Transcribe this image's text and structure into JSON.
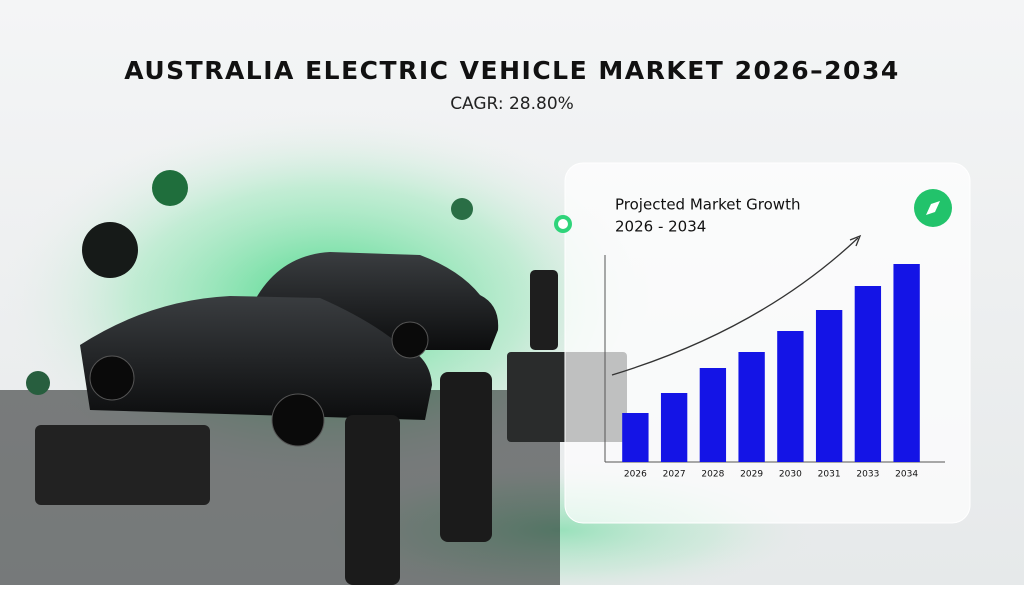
{
  "header": {
    "title": "AUSTRALIA ELECTRIC VEHICLE MARKET 2026–2034",
    "subtitle": "CAGR: 28.80%"
  },
  "chart_data": {
    "type": "bar",
    "title": "Projected Market Growth",
    "subtitle": "2026 - 2034",
    "categories": [
      "2026",
      "2027",
      "2028",
      "2029",
      "2030",
      "2031",
      "2033",
      "2034"
    ],
    "values": [
      49,
      69,
      94,
      110,
      131,
      152,
      176,
      198
    ],
    "color": "#1414e6",
    "ylim": [
      0,
      207
    ]
  }
}
